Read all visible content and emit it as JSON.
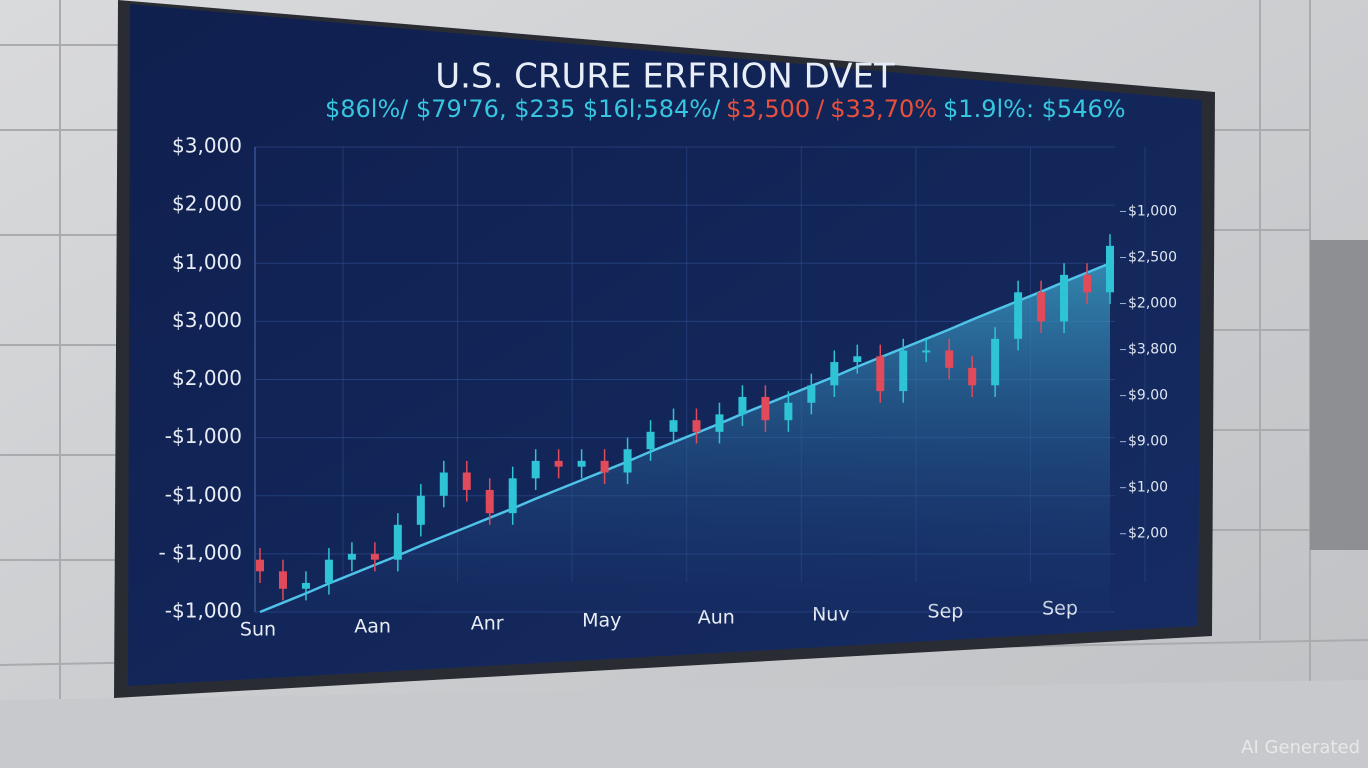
{
  "chart_data": {
    "type": "candlestick",
    "title": "U.S. CRURE ERFRION DVET",
    "ticker": [
      {
        "text": "$86l%/ $79'76, $235  $16l;584%/",
        "color": "#37c6e0"
      },
      {
        "text": "$3,500",
        "color": "#e8503c"
      },
      {
        "text": "/",
        "color": "#e8503c"
      },
      {
        "text": "$33,70%",
        "color": "#e8503c"
      },
      {
        "text": "$1.9l%: $546%",
        "color": "#37c6e0"
      }
    ],
    "categories": [
      "Sun",
      "Aan",
      "Anr",
      "May",
      "Aun",
      "Nuv",
      "Sep",
      "Sep"
    ],
    "ylim": [
      0,
      8
    ],
    "yticks": [
      {
        "value": 0,
        "label": "-$1,000"
      },
      {
        "value": 1,
        "label": "- $1,000"
      },
      {
        "value": 2,
        "label": "-$1,000"
      },
      {
        "value": 3,
        "label": "-$1,000"
      },
      {
        "value": 4,
        "label": "$2,000"
      },
      {
        "value": 5,
        "label": "$3,000"
      },
      {
        "value": 6,
        "label": "$1,000"
      },
      {
        "value": 7,
        "label": "$2,000"
      },
      {
        "value": 8,
        "label": "$3,000"
      }
    ],
    "y2lim": [
      -1.7,
      8.4
    ],
    "y2ticks": [
      {
        "value": 0,
        "label": "$2,00"
      },
      {
        "value": 1,
        "label": "$1,00"
      },
      {
        "value": 2,
        "label": "$9.00"
      },
      {
        "value": 3,
        "label": "$9.00"
      },
      {
        "value": 4,
        "label": "$3,800"
      },
      {
        "value": 5,
        "label": "$2,000"
      },
      {
        "value": 6,
        "label": "$2,500"
      },
      {
        "value": 7,
        "label": "$1,000"
      }
    ],
    "grid": true,
    "up_color": "#2ec4d6",
    "down_color": "#e04a5a",
    "open": [
      0.9,
      0.7,
      0.4,
      0.5,
      0.9,
      1.0,
      0.9,
      1.5,
      2.0,
      2.4,
      2.1,
      1.7,
      2.3,
      2.6,
      2.5,
      2.6,
      2.4,
      2.8,
      3.1,
      3.3,
      3.1,
      3.4,
      3.7,
      3.3,
      3.6,
      3.9,
      4.3,
      4.4,
      3.8,
      4.5,
      4.5,
      4.2,
      3.9,
      4.7,
      5.5,
      5.0,
      5.8,
      5.5
    ],
    "high": [
      1.1,
      0.9,
      0.7,
      1.1,
      1.2,
      1.2,
      1.7,
      2.2,
      2.6,
      2.6,
      2.3,
      2.5,
      2.8,
      2.8,
      2.8,
      2.8,
      3.0,
      3.3,
      3.5,
      3.5,
      3.6,
      3.9,
      3.9,
      3.8,
      4.1,
      4.5,
      4.6,
      4.6,
      4.7,
      4.7,
      4.7,
      4.4,
      4.9,
      5.7,
      5.7,
      6.0,
      6.0,
      6.5
    ],
    "low": [
      0.5,
      0.2,
      0.2,
      0.3,
      0.7,
      0.7,
      0.7,
      1.3,
      1.8,
      1.9,
      1.5,
      1.5,
      2.1,
      2.3,
      2.3,
      2.2,
      2.2,
      2.6,
      2.9,
      2.9,
      2.9,
      3.2,
      3.1,
      3.1,
      3.4,
      3.7,
      4.1,
      3.6,
      3.6,
      4.3,
      4.0,
      3.7,
      3.7,
      4.5,
      4.8,
      4.8,
      5.3,
      5.3
    ],
    "close": [
      0.7,
      0.4,
      0.5,
      0.9,
      1.0,
      0.9,
      1.5,
      2.0,
      2.4,
      2.1,
      1.7,
      2.3,
      2.6,
      2.5,
      2.6,
      2.4,
      2.8,
      3.1,
      3.3,
      3.1,
      3.4,
      3.7,
      3.3,
      3.6,
      3.9,
      4.3,
      4.4,
      3.8,
      4.5,
      4.5,
      4.2,
      3.9,
      4.7,
      5.5,
      5.0,
      5.8,
      5.5,
      6.3
    ],
    "trend": {
      "color": "#4fc3e8",
      "values": [
        0,
        0.16,
        0.32,
        0.49,
        0.65,
        0.81,
        0.97,
        1.14,
        1.3,
        1.46,
        1.62,
        1.78,
        1.95,
        2.11,
        2.27,
        2.43,
        2.59,
        2.76,
        2.92,
        3.08,
        3.24,
        3.41,
        3.57,
        3.73,
        3.89,
        4.05,
        4.22,
        4.38,
        4.54,
        4.7,
        4.86,
        5.03,
        5.19,
        5.35,
        5.51,
        5.68,
        5.84,
        6.0
      ]
    }
  },
  "watermark": "AI Generated"
}
